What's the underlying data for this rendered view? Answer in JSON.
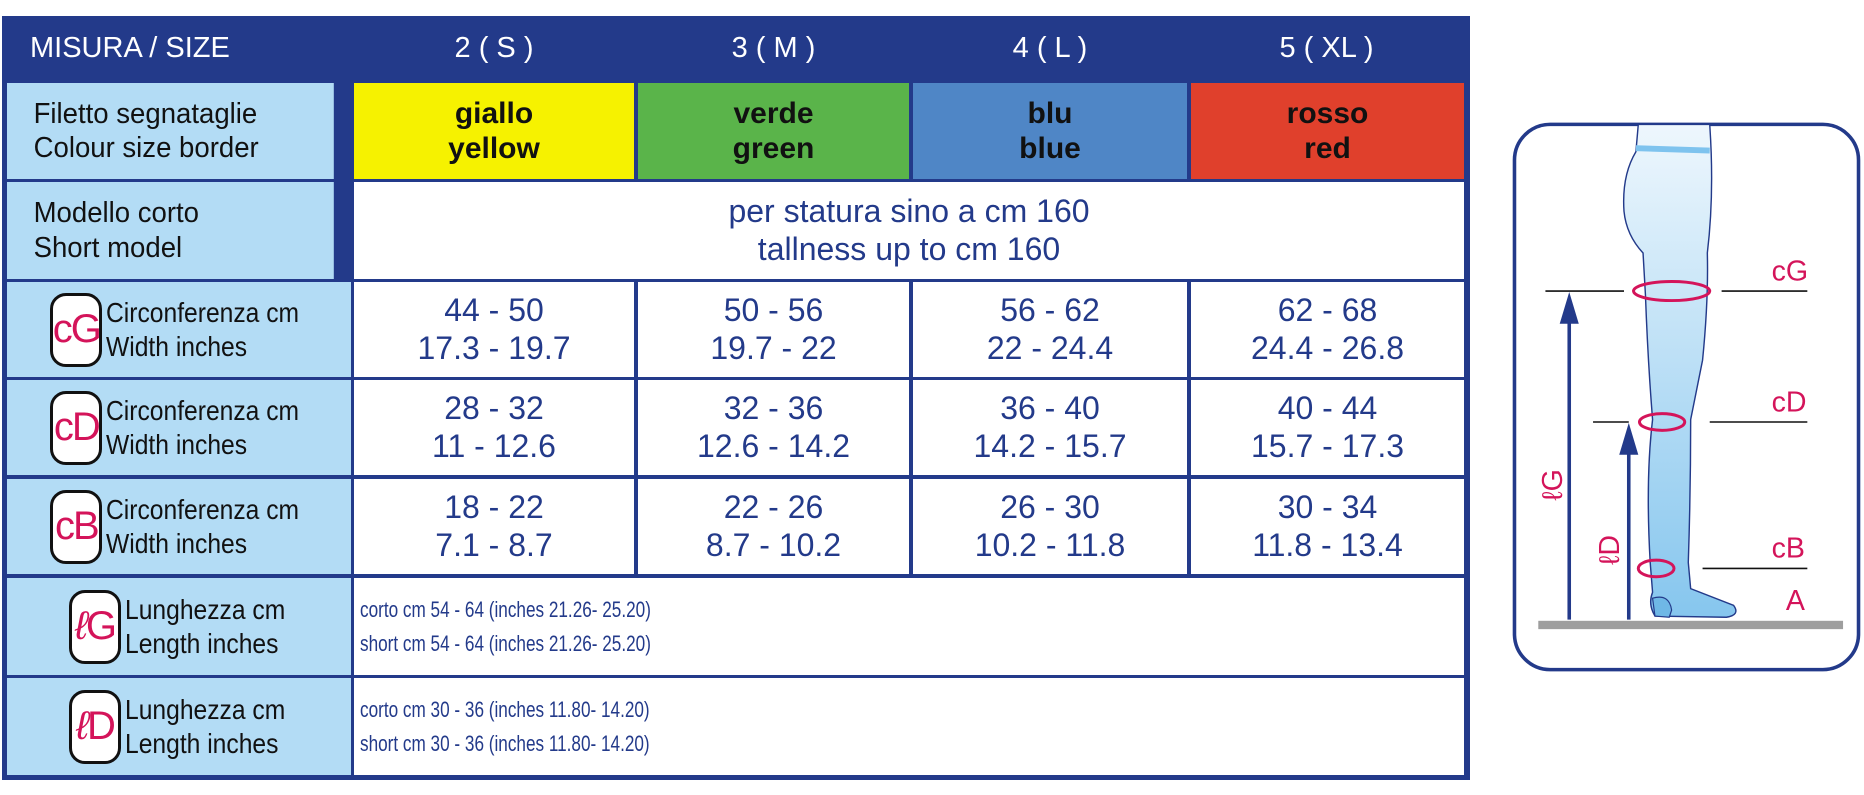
{
  "header": {
    "label": "MISURA / SIZE",
    "sizes": [
      "2 ( S )",
      "3 ( M )",
      "4 ( L )",
      "5 ( XL )"
    ]
  },
  "colour_row": {
    "label_it": "Filetto segnataglie",
    "label_en": "Colour size border",
    "colours": [
      {
        "it": "giallo",
        "en": "yellow",
        "hex": "#f6f200"
      },
      {
        "it": "verde",
        "en": "green",
        "hex": "#5ab44a"
      },
      {
        "it": "blu",
        "en": "blue",
        "hex": "#4f86c6"
      },
      {
        "it": "rosso",
        "en": "red",
        "hex": "#e0402c"
      }
    ]
  },
  "short_row": {
    "label_it": "Modello corto",
    "label_en": "Short model",
    "value_it": "per statura sino a cm 160",
    "value_en": "tallness up to cm 160"
  },
  "measure_rows": [
    {
      "badge": "cG",
      "label_it": "Circonferenza cm",
      "label_en": "Width inches",
      "cm": [
        "44 - 50",
        "50 - 56",
        "56 - 62",
        "62 - 68"
      ],
      "in": [
        "17.3 - 19.7",
        "19.7 - 22",
        "22 - 24.4",
        "24.4 - 26.8"
      ]
    },
    {
      "badge": "cD",
      "label_it": "Circonferenza cm",
      "label_en": "Width inches",
      "cm": [
        "28 - 32",
        "32 - 36",
        "36 - 40",
        "40 - 44"
      ],
      "in": [
        "11 - 12.6",
        "12.6 - 14.2",
        "14.2 - 15.7",
        "15.7 - 17.3"
      ]
    },
    {
      "badge": "cB",
      "label_it": "Circonferenza cm",
      "label_en": "Width inches",
      "cm": [
        "18 - 22",
        "22 - 26",
        "26 - 30",
        "30 - 34"
      ],
      "in": [
        "7.1 - 8.7",
        "8.7 - 10.2",
        "10.2 - 11.8",
        "11.8 - 13.4"
      ]
    }
  ],
  "length_rows": [
    {
      "badge_l": "ℓ",
      "badge": "G",
      "label_it": "Lunghezza cm",
      "label_en": "Length inches",
      "line1": "corto cm 54 - 64 (inches 21.26- 25.20)",
      "line2": "short cm 54 - 64 (inches 21.26- 25.20)"
    },
    {
      "badge_l": "ℓ",
      "badge": "D",
      "label_it": "Lunghezza cm",
      "label_en": "Length inches",
      "line1": "corto cm 30 - 36 (inches 11.80- 14.20)",
      "line2": "short cm 30 - 36 (inches 11.80- 14.20)"
    }
  ],
  "diagram": {
    "labels": {
      "cG": "cG",
      "cD": "cD",
      "cB": "cB",
      "A": "A",
      "lG": "ℓG",
      "lD": "ℓD"
    }
  },
  "colors": {
    "navy": "#233a8a",
    "light_blue": "#b3dcf5",
    "magenta": "#d4145a"
  }
}
